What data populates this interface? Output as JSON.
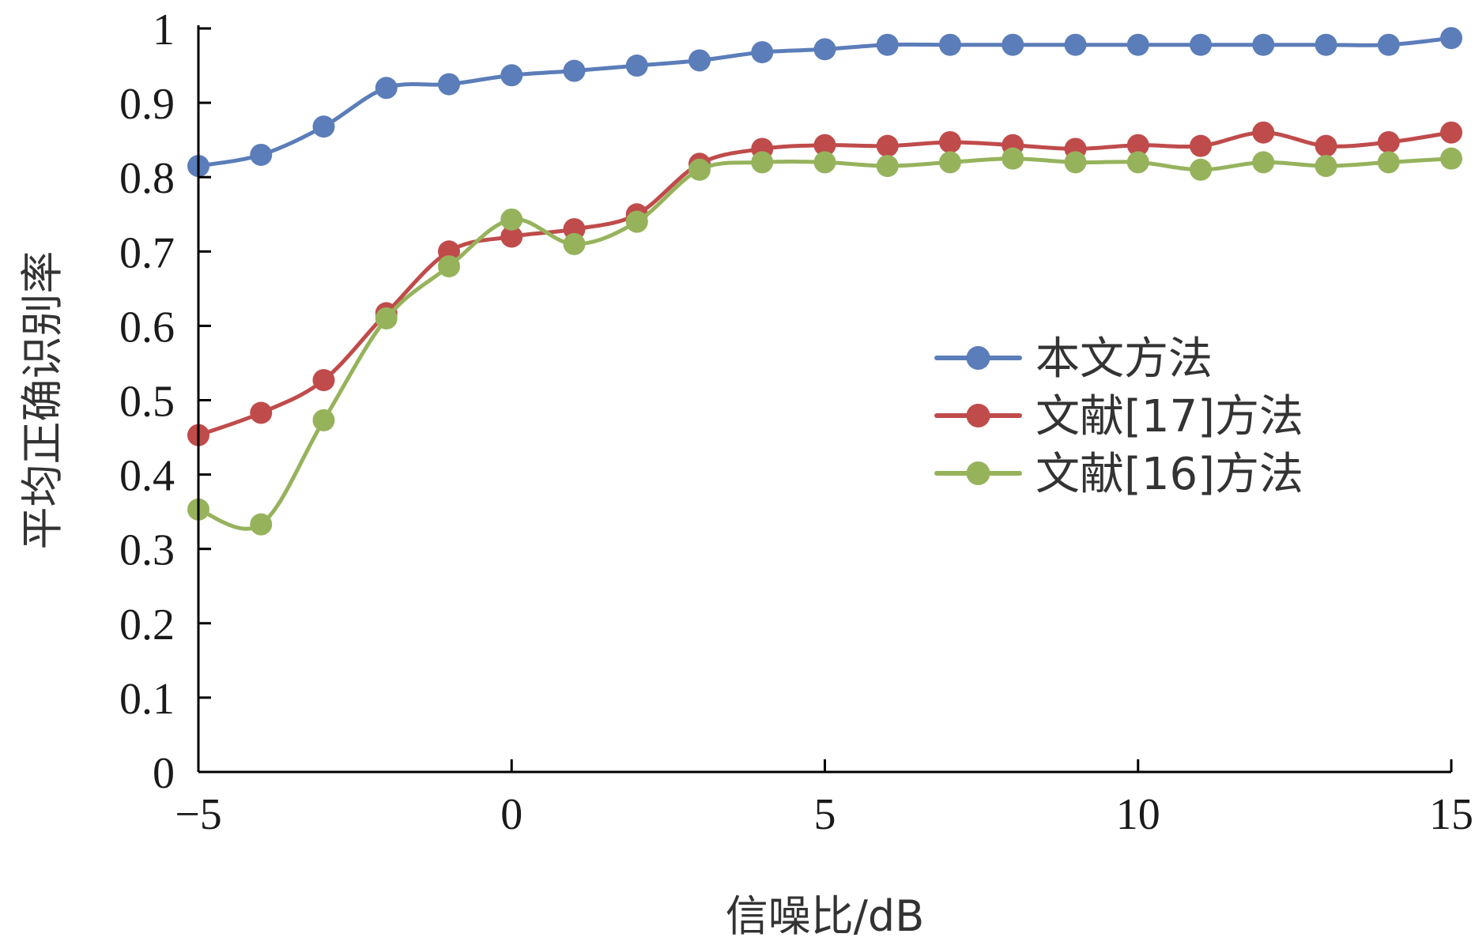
{
  "chart_data": {
    "type": "line",
    "title": "",
    "xlabel": "信噪比/dB",
    "ylabel": "平均正确识别率",
    "xlim": [
      -5,
      15
    ],
    "ylim": [
      0,
      1
    ],
    "x_ticks": [
      -5,
      0,
      5,
      10,
      15
    ],
    "x_tick_labels": [
      "−5",
      "0",
      "5",
      "10",
      "15"
    ],
    "y_ticks": [
      0,
      0.1,
      0.2,
      0.3,
      0.4,
      0.5,
      0.6,
      0.7,
      0.8,
      0.9,
      1
    ],
    "y_tick_labels": [
      "0",
      "0.1",
      "0.2",
      "0.3",
      "0.4",
      "0.5",
      "0.6",
      "0.7",
      "0.8",
      "0.9",
      "1"
    ],
    "grid": false,
    "legend_position": "center-right",
    "x": [
      -5,
      -4,
      -3,
      -2,
      -1,
      0,
      1,
      2,
      3,
      4,
      5,
      6,
      7,
      8,
      9,
      10,
      11,
      12,
      13,
      14,
      15
    ],
    "series": [
      {
        "name": "本文方法",
        "color": "#5b7db9",
        "values": [
          0.815,
          0.83,
          0.868,
          0.92,
          0.925,
          0.937,
          0.943,
          0.95,
          0.957,
          0.968,
          0.972,
          0.978,
          0.978,
          0.978,
          0.978,
          0.978,
          0.978,
          0.978,
          0.978,
          0.978,
          0.987
        ]
      },
      {
        "name": "文献[17]方法",
        "color": "#c04b4b",
        "values": [
          0.453,
          0.483,
          0.527,
          0.617,
          0.7,
          0.72,
          0.73,
          0.75,
          0.818,
          0.838,
          0.843,
          0.842,
          0.847,
          0.843,
          0.838,
          0.843,
          0.842,
          0.86,
          0.842,
          0.847,
          0.86
        ]
      },
      {
        "name": "文献[16]方法",
        "color": "#96b35c",
        "values": [
          0.353,
          0.333,
          0.473,
          0.61,
          0.68,
          0.743,
          0.71,
          0.74,
          0.81,
          0.82,
          0.82,
          0.815,
          0.82,
          0.825,
          0.82,
          0.82,
          0.81,
          0.82,
          0.815,
          0.82,
          0.825
        ]
      }
    ]
  }
}
